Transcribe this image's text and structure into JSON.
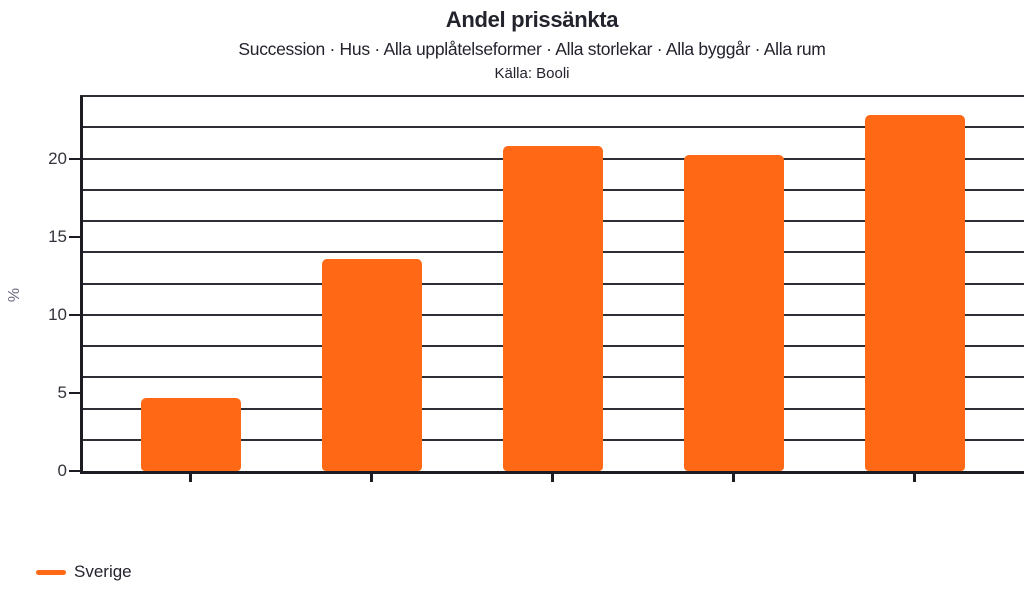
{
  "header": {
    "title": "Andel prissänkta",
    "subtitle": "Succession · Hus · Alla upplåtelseformer · Alla storlekar · Alla byggår · Alla rum",
    "source": "Källa: Booli"
  },
  "y_axis": {
    "title": "%",
    "tick_labels": [
      "0",
      "5",
      "10",
      "15",
      "20"
    ]
  },
  "legend": {
    "items": [
      {
        "label": "Sverige",
        "color": "#ff6916"
      }
    ]
  },
  "colors": {
    "background": "#ffffff",
    "bar": "#ff6916",
    "title_text": "#23232e",
    "tick_label_text": "#33333c",
    "axis_title_text": "#6a6a7e",
    "gridline": "#2e2e36",
    "axis_line": "#1c1c22"
  },
  "chart_data": {
    "type": "bar",
    "title": "Andel prissänkta",
    "subtitle": "Succession · Hus · Alla upplåtelseformer · Alla storlekar · Alla byggår · Alla rum",
    "source": "Källa: Booli",
    "categories": [
      "",
      "",
      "",
      "",
      ""
    ],
    "series": [
      {
        "name": "Sverige",
        "color": "#ff6916",
        "values": [
          4.7,
          13.6,
          20.8,
          20.2,
          22.8
        ]
      }
    ],
    "xlabel": "",
    "ylabel": "%",
    "ylim": [
      0,
      24
    ],
    "labeled_ticks": [
      0,
      5,
      10,
      15,
      20
    ],
    "gridline_interval": 2,
    "grid": true,
    "legend_position": "bottom-left"
  }
}
